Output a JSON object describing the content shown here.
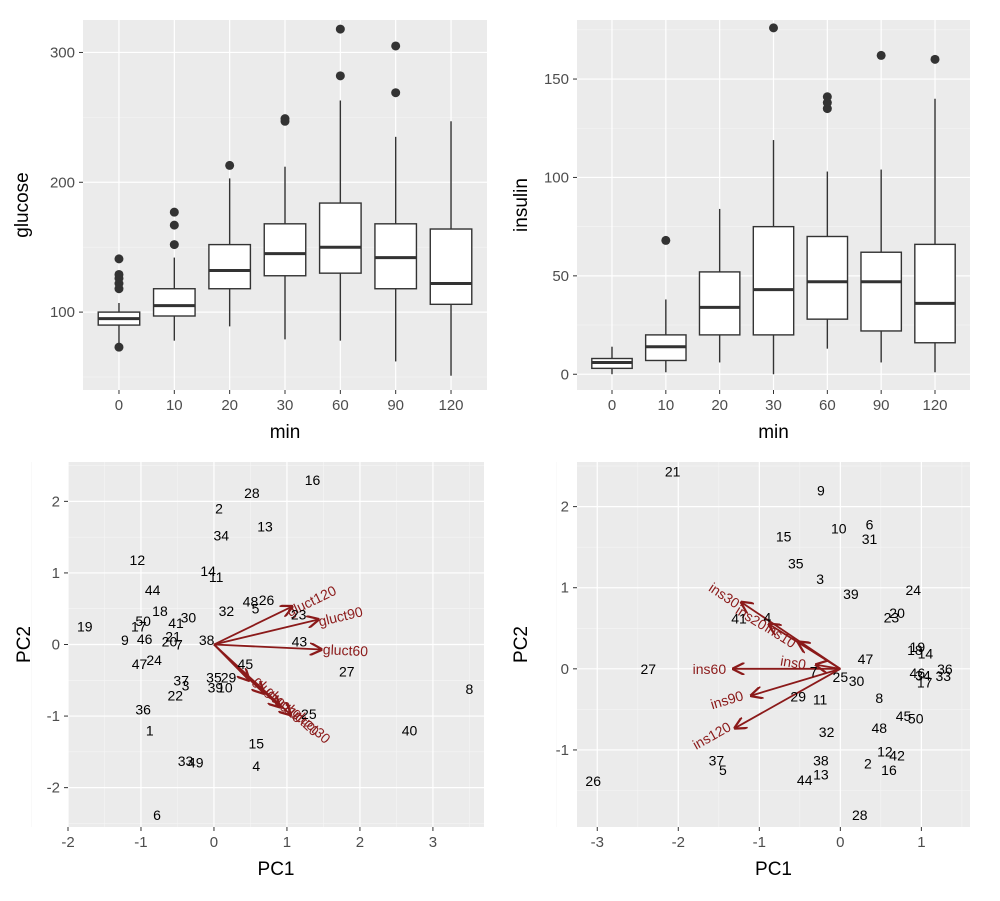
{
  "colors": {
    "panel": "#ebebeb",
    "arrow": "#8b1a1a",
    "box_line": "#333333"
  },
  "chart_data": [
    {
      "type": "box",
      "xlabel": "min",
      "ylabel": "glucose",
      "categories": [
        "0",
        "10",
        "20",
        "30",
        "60",
        "90",
        "120"
      ],
      "ylim": [
        40,
        325
      ],
      "yticks": [
        100,
        200,
        300
      ],
      "boxes": [
        {
          "min": 75,
          "q1": 90,
          "median": 95,
          "q3": 100,
          "max": 107,
          "outliers": [
            73,
            118,
            122,
            126,
            129,
            141
          ]
        },
        {
          "min": 78,
          "q1": 97,
          "median": 105,
          "q3": 118,
          "max": 142,
          "outliers": [
            152,
            167,
            177
          ]
        },
        {
          "min": 89,
          "q1": 118,
          "median": 132,
          "q3": 152,
          "max": 203,
          "outliers": [
            213
          ]
        },
        {
          "min": 79,
          "q1": 128,
          "median": 145,
          "q3": 168,
          "max": 212,
          "outliers": [
            247,
            249
          ]
        },
        {
          "min": 78,
          "q1": 130,
          "median": 150,
          "q3": 184,
          "max": 263,
          "outliers": [
            282,
            318
          ]
        },
        {
          "min": 62,
          "q1": 118,
          "median": 142,
          "q3": 168,
          "max": 235,
          "outliers": [
            269,
            305
          ]
        },
        {
          "min": 51,
          "q1": 106,
          "median": 122,
          "q3": 164,
          "max": 247,
          "outliers": []
        }
      ]
    },
    {
      "type": "box",
      "xlabel": "min",
      "ylabel": "insulin",
      "categories": [
        "0",
        "10",
        "20",
        "30",
        "60",
        "90",
        "120"
      ],
      "ylim": [
        -8,
        180
      ],
      "yticks": [
        0,
        50,
        100,
        150
      ],
      "boxes": [
        {
          "min": 0,
          "q1": 3,
          "median": 6,
          "q3": 8,
          "max": 14,
          "outliers": []
        },
        {
          "min": 1,
          "q1": 7,
          "median": 14,
          "q3": 20,
          "max": 38,
          "outliers": [
            68
          ]
        },
        {
          "min": 6,
          "q1": 20,
          "median": 34,
          "q3": 52,
          "max": 84,
          "outliers": []
        },
        {
          "min": 0,
          "q1": 20,
          "median": 43,
          "q3": 75,
          "max": 119,
          "outliers": [
            176
          ]
        },
        {
          "min": 13,
          "q1": 28,
          "median": 47,
          "q3": 70,
          "max": 103,
          "outliers": [
            135,
            138,
            141
          ]
        },
        {
          "min": 6,
          "q1": 22,
          "median": 47,
          "q3": 62,
          "max": 104,
          "outliers": [
            162
          ]
        },
        {
          "min": 1,
          "q1": 16,
          "median": 36,
          "q3": 66,
          "max": 140,
          "outliers": [
            160
          ]
        }
      ]
    },
    {
      "type": "scatter",
      "xlabel": "PC1",
      "ylabel": "PC2",
      "xlim": [
        -2.0,
        3.7
      ],
      "ylim": [
        -2.55,
        2.55
      ],
      "xticks": [
        -2,
        -1,
        0,
        1,
        2,
        3
      ],
      "yticks": [
        -2,
        -1,
        0,
        1,
        2
      ],
      "points": [
        {
          "label": "16",
          "x": 1.35,
          "y": 2.3
        },
        {
          "label": "28",
          "x": 0.52,
          "y": 2.12
        },
        {
          "label": "2",
          "x": 0.07,
          "y": 1.9
        },
        {
          "label": "13",
          "x": 0.7,
          "y": 1.65
        },
        {
          "label": "34",
          "x": 0.1,
          "y": 1.52
        },
        {
          "label": "12",
          "x": -1.05,
          "y": 1.18
        },
        {
          "label": "14",
          "x": -0.08,
          "y": 1.03
        },
        {
          "label": "11",
          "x": 0.03,
          "y": 0.94
        },
        {
          "label": "44",
          "x": -0.84,
          "y": 0.76
        },
        {
          "label": "48",
          "x": 0.5,
          "y": 0.6
        },
        {
          "label": "26",
          "x": 0.72,
          "y": 0.62
        },
        {
          "label": "18",
          "x": -0.74,
          "y": 0.47
        },
        {
          "label": "32",
          "x": 0.17,
          "y": 0.47
        },
        {
          "label": "5",
          "x": 0.57,
          "y": 0.5
        },
        {
          "label": "23",
          "x": 1.16,
          "y": 0.42
        },
        {
          "label": "30",
          "x": -0.35,
          "y": 0.38
        },
        {
          "label": "50",
          "x": -0.97,
          "y": 0.33
        },
        {
          "label": "41",
          "x": -0.52,
          "y": 0.3
        },
        {
          "label": "19",
          "x": -1.77,
          "y": 0.25
        },
        {
          "label": "17",
          "x": -1.03,
          "y": 0.25
        },
        {
          "label": "9",
          "x": -1.22,
          "y": 0.06
        },
        {
          "label": "46",
          "x": -0.95,
          "y": 0.08
        },
        {
          "label": "21",
          "x": -0.56,
          "y": 0.11
        },
        {
          "label": "20",
          "x": -0.61,
          "y": 0.04
        },
        {
          "label": "7",
          "x": -0.48,
          "y": 0.0
        },
        {
          "label": "38",
          "x": -0.1,
          "y": 0.06
        },
        {
          "label": "43",
          "x": 1.17,
          "y": 0.04
        },
        {
          "label": "24",
          "x": -0.82,
          "y": -0.22
        },
        {
          "label": "47",
          "x": -1.02,
          "y": -0.27
        },
        {
          "label": "45",
          "x": 0.43,
          "y": -0.27
        },
        {
          "label": "27",
          "x": 1.82,
          "y": -0.38
        },
        {
          "label": "35",
          "x": 0.0,
          "y": -0.46
        },
        {
          "label": "29",
          "x": 0.2,
          "y": -0.46
        },
        {
          "label": "37",
          "x": -0.45,
          "y": -0.5
        },
        {
          "label": "3",
          "x": -0.39,
          "y": -0.57
        },
        {
          "label": "39",
          "x": 0.02,
          "y": -0.6
        },
        {
          "label": "10",
          "x": 0.15,
          "y": -0.6
        },
        {
          "label": "22",
          "x": -0.53,
          "y": -0.71
        },
        {
          "label": "8",
          "x": 3.5,
          "y": -0.62
        },
        {
          "label": "36",
          "x": -0.97,
          "y": -0.91
        },
        {
          "label": "25",
          "x": 1.3,
          "y": -0.97
        },
        {
          "label": "1",
          "x": -0.88,
          "y": -1.2
        },
        {
          "label": "40",
          "x": 2.68,
          "y": -1.2
        },
        {
          "label": "15",
          "x": 0.58,
          "y": -1.38
        },
        {
          "label": "33",
          "x": -0.39,
          "y": -1.63
        },
        {
          "label": "49",
          "x": -0.25,
          "y": -1.65
        },
        {
          "label": "4",
          "x": 0.58,
          "y": -1.7
        },
        {
          "label": "6",
          "x": -0.78,
          "y": -2.38
        }
      ],
      "vectors": [
        {
          "label": "gluct120",
          "x": 1.07,
          "y": 0.53
        },
        {
          "label": "gluct90",
          "x": 1.43,
          "y": 0.35
        },
        {
          "label": "gluct60",
          "x": 1.47,
          "y": -0.07
        },
        {
          "label": "gluct30",
          "x": 1.05,
          "y": -0.98
        },
        {
          "label": "gluct20",
          "x": 0.9,
          "y": -0.87
        },
        {
          "label": "gluct10",
          "x": 0.68,
          "y": -0.68
        },
        {
          "label": "gluct0",
          "x": 0.48,
          "y": -0.5
        }
      ]
    },
    {
      "type": "scatter",
      "xlabel": "PC1",
      "ylabel": "PC2",
      "xlim": [
        -3.25,
        1.6
      ],
      "ylim": [
        -1.95,
        2.55
      ],
      "xticks": [
        -3,
        -2,
        -1,
        0,
        1
      ],
      "yticks": [
        -1,
        0,
        1,
        2
      ],
      "points": [
        {
          "label": "21",
          "x": -2.07,
          "y": 2.43
        },
        {
          "label": "9",
          "x": -0.24,
          "y": 2.2
        },
        {
          "label": "10",
          "x": -0.02,
          "y": 1.73
        },
        {
          "label": "6",
          "x": 0.36,
          "y": 1.78
        },
        {
          "label": "15",
          "x": -0.7,
          "y": 1.63
        },
        {
          "label": "31",
          "x": 0.36,
          "y": 1.6
        },
        {
          "label": "35",
          "x": -0.55,
          "y": 1.3
        },
        {
          "label": "3",
          "x": -0.25,
          "y": 1.11
        },
        {
          "label": "24",
          "x": 0.9,
          "y": 0.97
        },
        {
          "label": "39",
          "x": 0.13,
          "y": 0.92
        },
        {
          "label": "41",
          "x": -1.25,
          "y": 0.62
        },
        {
          "label": "4",
          "x": -0.9,
          "y": 0.63
        },
        {
          "label": "20",
          "x": 0.7,
          "y": 0.69
        },
        {
          "label": "23",
          "x": 0.63,
          "y": 0.63
        },
        {
          "label": "19",
          "x": 0.95,
          "y": 0.27
        },
        {
          "label": "18",
          "x": 0.92,
          "y": 0.23
        },
        {
          "label": "14",
          "x": 1.05,
          "y": 0.19
        },
        {
          "label": "47",
          "x": 0.31,
          "y": 0.12
        },
        {
          "label": "36",
          "x": 1.29,
          "y": 0.0
        },
        {
          "label": "46",
          "x": 0.95,
          "y": -0.05
        },
        {
          "label": "34",
          "x": 1.02,
          "y": -0.08
        },
        {
          "label": "33",
          "x": 1.27,
          "y": -0.09
        },
        {
          "label": "17",
          "x": 1.04,
          "y": -0.17
        },
        {
          "label": "27",
          "x": -2.37,
          "y": 0.0
        },
        {
          "label": "7",
          "x": -0.33,
          "y": -0.03
        },
        {
          "label": "25",
          "x": 0.0,
          "y": -0.1
        },
        {
          "label": "30",
          "x": 0.2,
          "y": -0.15
        },
        {
          "label": "29",
          "x": -0.52,
          "y": -0.34
        },
        {
          "label": "11",
          "x": -0.25,
          "y": -0.38
        },
        {
          "label": "8",
          "x": 0.48,
          "y": -0.36
        },
        {
          "label": "45",
          "x": 0.78,
          "y": -0.58
        },
        {
          "label": "50",
          "x": 0.93,
          "y": -0.61
        },
        {
          "label": "48",
          "x": 0.48,
          "y": -0.73
        },
        {
          "label": "32",
          "x": -0.17,
          "y": -0.78
        },
        {
          "label": "12",
          "x": 0.55,
          "y": -1.02
        },
        {
          "label": "42",
          "x": 0.7,
          "y": -1.07
        },
        {
          "label": "2",
          "x": 0.34,
          "y": -1.17
        },
        {
          "label": "16",
          "x": 0.6,
          "y": -1.25
        },
        {
          "label": "38",
          "x": -0.24,
          "y": -1.13
        },
        {
          "label": "37",
          "x": -1.53,
          "y": -1.13
        },
        {
          "label": "5",
          "x": -1.45,
          "y": -1.25
        },
        {
          "label": "13",
          "x": -0.24,
          "y": -1.3
        },
        {
          "label": "44",
          "x": -0.44,
          "y": -1.37
        },
        {
          "label": "26",
          "x": -3.05,
          "y": -1.38
        },
        {
          "label": "28",
          "x": 0.24,
          "y": -1.8
        }
      ],
      "vectors": [
        {
          "label": "ins30",
          "x": -1.22,
          "y": 0.82
        },
        {
          "label": "ins20",
          "x": -0.88,
          "y": 0.55
        },
        {
          "label": "ins10",
          "x": -0.52,
          "y": 0.33
        },
        {
          "label": "ins0",
          "x": -0.3,
          "y": 0.05
        },
        {
          "label": "ins60",
          "x": -1.32,
          "y": 0.0
        },
        {
          "label": "ins90",
          "x": -1.1,
          "y": -0.33
        },
        {
          "label": "ins120",
          "x": -1.3,
          "y": -0.73
        }
      ]
    }
  ]
}
